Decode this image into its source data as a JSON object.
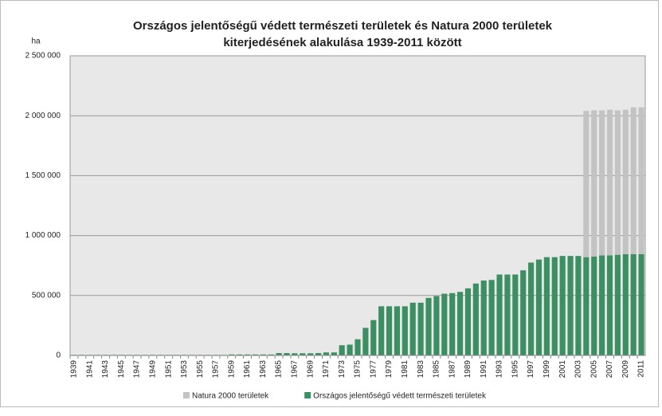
{
  "chart_data": {
    "type": "bar",
    "stacked": true,
    "title": [
      "Országos jelentőségű védett természeti területek és Natura 2000 területek",
      "kiterjedésének alakulása 1939-2011 között"
    ],
    "y_label": "ha",
    "categories": [
      "1939",
      null,
      "1941",
      null,
      "1943",
      null,
      "1945",
      null,
      "1947",
      null,
      "1949",
      null,
      "1951",
      null,
      "1953",
      null,
      "1955",
      null,
      "1957",
      null,
      "1959",
      null,
      "1961",
      null,
      "1963",
      null,
      "1965",
      null,
      "1967",
      null,
      "1969",
      null,
      "1971",
      null,
      "1973",
      null,
      "1975",
      null,
      "1977",
      null,
      "1979",
      null,
      "1981",
      null,
      "1983",
      null,
      "1985",
      null,
      "1987",
      null,
      "1989",
      null,
      "1991",
      null,
      "1993",
      null,
      "1995",
      null,
      "1997",
      null,
      "1999",
      null,
      "2001",
      null,
      "2003",
      null,
      "2005",
      null,
      "2007",
      null,
      "2009",
      null,
      "2011"
    ],
    "series": [
      {
        "name": "Országos jelentőségű védett természeti területek",
        "color": "#3b8f63",
        "values": [
          5000,
          5000,
          5000,
          5000,
          5000,
          5000,
          5000,
          5000,
          5000,
          5000,
          5000,
          5000,
          5000,
          5000,
          5000,
          5000,
          5000,
          5000,
          5000,
          5000,
          8000,
          8000,
          8000,
          8000,
          8000,
          8000,
          20000,
          20000,
          18000,
          18000,
          18000,
          20000,
          25000,
          25000,
          85000,
          90000,
          135000,
          230000,
          295000,
          410000,
          410000,
          410000,
          410000,
          440000,
          440000,
          480000,
          495000,
          515000,
          520000,
          530000,
          560000,
          600000,
          625000,
          630000,
          675000,
          675000,
          675000,
          710000,
          775000,
          800000,
          820000,
          820000,
          830000,
          830000,
          830000,
          820000,
          825000,
          835000,
          835000,
          840000,
          845000,
          845000,
          845000
        ]
      },
      {
        "name": "Natura 2000 területek",
        "color": "#c3c3c3",
        "values": [
          null,
          null,
          null,
          null,
          null,
          null,
          null,
          null,
          null,
          null,
          null,
          null,
          null,
          null,
          null,
          null,
          null,
          null,
          null,
          null,
          null,
          null,
          null,
          null,
          null,
          null,
          null,
          null,
          null,
          null,
          null,
          null,
          null,
          null,
          null,
          null,
          null,
          null,
          null,
          null,
          null,
          null,
          null,
          null,
          null,
          null,
          null,
          null,
          null,
          null,
          null,
          null,
          null,
          null,
          null,
          null,
          null,
          null,
          null,
          null,
          null,
          null,
          null,
          null,
          null,
          1220000,
          1220000,
          1210000,
          1215000,
          1205000,
          1205000,
          1225000,
          1225000
        ]
      }
    ],
    "ylim": [
      0,
      2500000
    ],
    "yticks": [
      0,
      {
        "value": 500000,
        "label": "500 000"
      },
      {
        "value": 1000000,
        "label": "1 000 000"
      },
      {
        "value": 1500000,
        "label": "1 500 000"
      },
      {
        "value": 2000000,
        "label": "2 000 000"
      },
      {
        "value": 2500000,
        "label": "2 500 000"
      }
    ],
    "grid": true,
    "legend": "bottom"
  }
}
